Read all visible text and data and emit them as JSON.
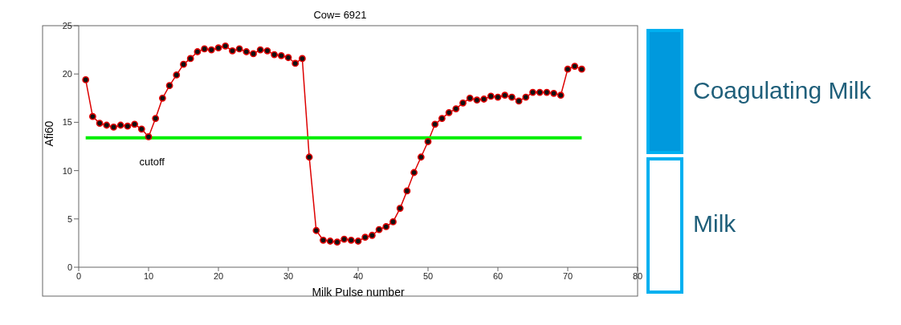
{
  "chart_data": {
    "type": "line",
    "title": "Cow= 6921",
    "xlabel": "Milk Pulse number",
    "ylabel": "Afi60",
    "x": [
      1,
      2,
      3,
      4,
      5,
      6,
      7,
      8,
      9,
      10,
      11,
      12,
      13,
      14,
      15,
      16,
      17,
      18,
      19,
      20,
      21,
      22,
      23,
      24,
      25,
      26,
      27,
      28,
      29,
      30,
      31,
      32,
      33,
      34,
      35,
      36,
      37,
      38,
      39,
      40,
      41,
      42,
      43,
      44,
      45,
      46,
      47,
      48,
      49,
      50,
      51,
      52,
      53,
      54,
      55,
      56,
      57,
      58,
      59,
      60,
      61,
      62,
      63,
      64,
      65,
      66,
      67,
      68,
      69,
      70,
      71,
      72
    ],
    "series": [
      {
        "color": "#dd0000",
        "marker": "circle",
        "values": [
          19.4,
          15.6,
          14.9,
          14.7,
          14.5,
          14.7,
          14.6,
          14.8,
          14.3,
          13.5,
          15.4,
          17.5,
          18.8,
          19.9,
          21.0,
          21.6,
          22.3,
          22.6,
          22.5,
          22.7,
          22.9,
          22.4,
          22.6,
          22.3,
          22.1,
          22.5,
          22.4,
          22.0,
          21.9,
          21.7,
          21.1,
          21.6,
          11.4,
          3.8,
          2.8,
          2.7,
          2.6,
          2.9,
          2.8,
          2.7,
          3.1,
          3.3,
          3.9,
          4.2,
          4.7,
          6.1,
          7.9,
          9.8,
          11.4,
          13.0,
          14.8,
          15.4,
          16.0,
          16.4,
          17.0,
          17.5,
          17.3,
          17.4,
          17.7,
          17.6,
          17.8,
          17.6,
          17.2,
          17.6,
          18.1,
          18.1,
          18.1,
          18.0,
          17.8,
          20.5,
          20.8,
          20.5
        ]
      },
      {
        "name": "cutoff",
        "color": "#00ee00",
        "marker": "none",
        "x": [
          1,
          72
        ],
        "values": [
          13.4,
          13.4
        ]
      }
    ],
    "xlim": [
      0,
      80
    ],
    "xticks": [
      0,
      10,
      20,
      30,
      40,
      50,
      60,
      70,
      80
    ],
    "ylim": [
      0,
      25
    ],
    "yticks": [
      0,
      5,
      10,
      15,
      20,
      25
    ],
    "annotations": [
      "Coagulating Milk",
      "Milk"
    ]
  }
}
